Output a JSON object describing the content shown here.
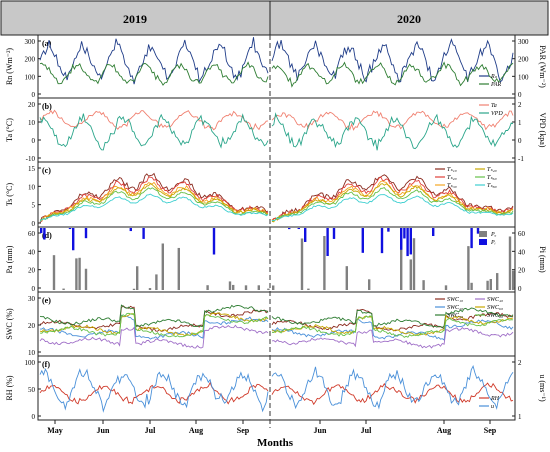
{
  "figure": {
    "year_headers": [
      "2019",
      "2020"
    ],
    "xlabel": "Months",
    "month_ticks": [
      "May",
      "Jun",
      "Jul",
      "Aug",
      "Sep",
      "Jun",
      "Jul",
      "Aug",
      "Sep"
    ],
    "colors": {
      "header_bg": "#c8c8c8",
      "dark_blue": "#1f3c88",
      "dark_green": "#2e7d32",
      "salmon": "#f08070",
      "teal": "#2aa58a",
      "brown": "#8b2b1f",
      "red": "#e0403a",
      "orange": "#f5a623",
      "gold": "#c8a800",
      "green": "#66c04a",
      "cyan": "#3ecfd0",
      "purple": "#a070c8",
      "bar_blue": "#1010e0",
      "bar_gray": "#808080",
      "sky": "#4a90d9",
      "red2": "#d03a2a"
    }
  },
  "chart_data": [
    {
      "type": "line",
      "panel": "(a)",
      "ylabel_left": "Rn (Wm⁻²)",
      "ylabel_right": "PAR (Wm⁻²)",
      "yticks_left": [
        "0",
        "100",
        "200",
        "300"
      ],
      "yticks_right": [
        "0",
        "100",
        "200",
        "300"
      ],
      "ylim": [
        0,
        320
      ],
      "series": [
        {
          "name": "Rn",
          "color": "dark_blue",
          "base": 190,
          "amp": 90,
          "period": 6
        },
        {
          "name": "PAR",
          "color": "dark_green",
          "base": 120,
          "amp": 50,
          "period": 6
        }
      ],
      "legend": [
        "Rₙ",
        "PAR"
      ]
    },
    {
      "type": "line",
      "panel": "(b)",
      "ylabel_left": "Ta (°C)",
      "ylabel_right": "VPD (kpa)",
      "yticks_left": [
        "-10",
        "0",
        "10",
        "20"
      ],
      "yticks_right": [
        "-1",
        "0",
        "1",
        "2"
      ],
      "ylim": [
        -10,
        20
      ],
      "series": [
        {
          "name": "Ta",
          "color": "salmon",
          "base": 10,
          "amp": 4,
          "period": 8
        },
        {
          "name": "VPD",
          "color": "teal",
          "base": 4,
          "amp": 7,
          "period": 7
        }
      ],
      "legend": [
        "Ta",
        "VPD"
      ]
    },
    {
      "type": "line",
      "panel": "(c)",
      "ylabel_left": "Ts (°C)",
      "yticks_left": [
        "0",
        "5",
        "10",
        "15"
      ],
      "ylim": [
        0,
        15
      ],
      "series": [
        {
          "name": "Ts10",
          "color": "brown",
          "peak": 11.5
        },
        {
          "name": "Ts20",
          "color": "red",
          "peak": 10.5
        },
        {
          "name": "Ts30",
          "color": "orange",
          "peak": 9.5
        },
        {
          "name": "Ts40",
          "color": "gold",
          "peak": 9.0
        },
        {
          "name": "Ts60",
          "color": "green",
          "peak": 8.0
        },
        {
          "name": "Ts80",
          "color": "cyan",
          "peak": 6.5
        }
      ],
      "legend": [
        "Tₛ₁₀",
        "Tₛ₂₀",
        "Tₛ₃₀",
        "Tₛ₄₀",
        "Tₛ₆₀",
        "Tₛ₈₀"
      ]
    },
    {
      "type": "bar",
      "panel": "(d)",
      "ylabel_left": "Pa (mm)",
      "ylabel_right": "Pi (mm)",
      "yticks_left": [
        "0",
        "20",
        "40",
        "60"
      ],
      "yticks_right": [
        "0",
        "20",
        "40",
        "60"
      ],
      "ylim": [
        0,
        60
      ],
      "series": [
        {
          "name": "Pa",
          "color": "bar_gray"
        },
        {
          "name": "Pi",
          "color": "bar_blue"
        }
      ],
      "legend": [
        "Pₐ",
        "Pᵢ"
      ]
    },
    {
      "type": "line",
      "panel": "(e)",
      "ylabel_left": "SWC (%)",
      "yticks_left": [
        "10",
        "20",
        "30"
      ],
      "ylim": [
        5,
        35
      ],
      "series": [
        {
          "name": "SWC10",
          "color": "brown",
          "base": 20
        },
        {
          "name": "SWC20",
          "color": "sky",
          "base": 16
        },
        {
          "name": "SWC30",
          "color": "dark_green",
          "base": 22
        },
        {
          "name": "SWC40",
          "color": "purple",
          "base": 12
        },
        {
          "name": "SWC60",
          "color": "gold",
          "base": 18
        },
        {
          "name": "SWC80",
          "color": "green",
          "base": 17
        }
      ],
      "legend": [
        "SWC₁₀",
        "SWC₂₀",
        "SWC₃₀",
        "SWC₄₀",
        "SWC₆₀",
        "SWC₈₀"
      ]
    },
    {
      "type": "line",
      "panel": "(f)",
      "ylabel_left": "RH (%)",
      "ylabel_right": "u (ms⁻¹)",
      "yticks_left": [
        "0",
        "50",
        "100"
      ],
      "yticks_right": [
        "1",
        "2"
      ],
      "ylim": [
        0,
        110
      ],
      "series": [
        {
          "name": "RH",
          "color": "red2",
          "base": 45,
          "amp": 15,
          "period": 9
        },
        {
          "name": "u",
          "color": "sky",
          "base": 55,
          "amp": 30,
          "period": 7
        }
      ],
      "legend": [
        "RH",
        "u"
      ]
    }
  ]
}
